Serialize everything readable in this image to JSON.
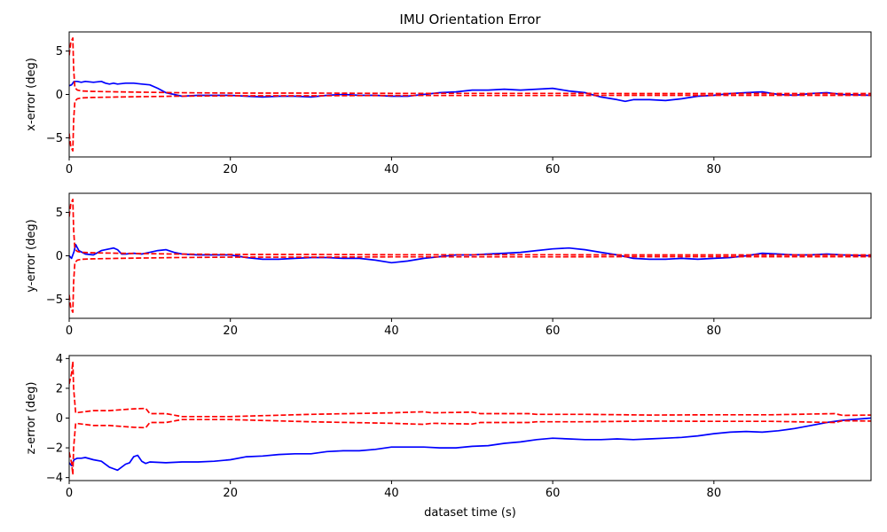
{
  "figure": {
    "title": "IMU Orientation Error",
    "xlabel": "dataset time (s)"
  },
  "chart_data": [
    {
      "type": "line",
      "title": "IMU Orientation Error",
      "xlabel": "",
      "ylabel": "x-error (deg)",
      "xlim": [
        0,
        99.5
      ],
      "ylim": [
        -7.2,
        7.2
      ],
      "xticks": [
        0,
        20,
        40,
        60,
        80
      ],
      "yticks": [
        -5,
        0,
        5
      ],
      "grid": false,
      "series": [
        {
          "name": "",
          "color": "#0000ff",
          "style": "solid",
          "x": [
            0,
            0.3,
            0.6,
            1,
            1.5,
            2,
            3,
            4,
            4.5,
            5,
            5.5,
            6,
            7,
            8,
            9,
            10,
            11,
            12,
            13,
            14,
            16,
            18,
            20,
            22,
            24,
            26,
            28,
            30,
            32,
            34,
            36,
            38,
            40,
            42,
            44,
            46,
            48,
            50,
            52,
            54,
            56,
            58,
            60,
            62,
            64,
            66,
            68,
            69,
            70,
            72,
            74,
            76,
            78,
            80,
            82,
            84,
            86,
            88,
            90,
            92,
            94,
            96,
            99.5
          ],
          "y": [
            1.0,
            1.1,
            1.5,
            1.5,
            1.4,
            1.5,
            1.4,
            1.5,
            1.3,
            1.2,
            1.3,
            1.2,
            1.3,
            1.3,
            1.2,
            1.1,
            0.7,
            0.2,
            0.0,
            -0.2,
            -0.1,
            -0.1,
            -0.1,
            -0.2,
            -0.3,
            -0.2,
            -0.2,
            -0.3,
            -0.1,
            0.0,
            -0.1,
            -0.1,
            -0.2,
            -0.2,
            0.0,
            0.2,
            0.3,
            0.5,
            0.5,
            0.6,
            0.5,
            0.6,
            0.7,
            0.4,
            0.2,
            -0.3,
            -0.6,
            -0.8,
            -0.6,
            -0.6,
            -0.7,
            -0.5,
            -0.2,
            -0.1,
            0.1,
            0.2,
            0.3,
            0.0,
            -0.1,
            0.1,
            0.2,
            0.0,
            -0.1
          ]
        },
        {
          "name": "",
          "color": "#ff0000",
          "style": "dashed",
          "x": [
            0,
            0.2,
            0.45,
            0.55,
            0.7,
            1.0,
            1.5,
            3,
            6,
            10,
            13,
            16,
            20,
            30,
            40,
            50,
            60,
            70,
            80,
            90,
            99.5
          ],
          "y": [
            4.5,
            6.0,
            6.5,
            3.0,
            0.8,
            0.5,
            0.4,
            0.35,
            0.3,
            0.25,
            0.2,
            0.18,
            0.15,
            0.15,
            0.12,
            0.12,
            0.12,
            0.1,
            0.1,
            0.1,
            0.1
          ]
        },
        {
          "name": "",
          "color": "#ff0000",
          "style": "dashed",
          "x": [
            0,
            0.2,
            0.45,
            0.55,
            0.7,
            1.0,
            1.5,
            3,
            6,
            10,
            13,
            16,
            20,
            30,
            40,
            50,
            60,
            70,
            80,
            90,
            99.5
          ],
          "y": [
            -4.5,
            -6.0,
            -6.5,
            -3.0,
            -0.8,
            -0.5,
            -0.4,
            -0.35,
            -0.3,
            -0.25,
            -0.2,
            -0.18,
            -0.15,
            -0.15,
            -0.12,
            -0.12,
            -0.12,
            -0.1,
            -0.1,
            -0.1,
            -0.1
          ]
        }
      ]
    },
    {
      "type": "line",
      "title": "",
      "xlabel": "",
      "ylabel": "y-error (deg)",
      "xlim": [
        0,
        99.5
      ],
      "ylim": [
        -7.2,
        7.2
      ],
      "xticks": [
        0,
        20,
        40,
        60,
        80
      ],
      "yticks": [
        -5,
        0,
        5
      ],
      "grid": false,
      "series": [
        {
          "name": "",
          "color": "#0000ff",
          "style": "solid",
          "x": [
            0,
            0.3,
            0.6,
            0.8,
            1.2,
            2,
            3,
            4,
            5,
            5.5,
            6,
            6.5,
            7,
            8,
            9,
            10,
            11,
            12,
            13,
            14,
            16,
            18,
            20,
            22,
            24,
            26,
            28,
            30,
            32,
            34,
            36,
            38,
            40,
            42,
            44,
            46,
            48,
            50,
            52,
            54,
            56,
            58,
            60,
            62,
            64,
            66,
            68,
            70,
            72,
            74,
            76,
            78,
            80,
            82,
            84,
            86,
            88,
            90,
            92,
            94,
            96,
            99.5
          ],
          "y": [
            0.0,
            -0.3,
            0.5,
            1.3,
            0.6,
            0.2,
            0.1,
            0.6,
            0.8,
            0.9,
            0.7,
            0.2,
            0.2,
            0.3,
            0.2,
            0.4,
            0.6,
            0.7,
            0.4,
            0.2,
            0.1,
            0.1,
            0.1,
            -0.2,
            -0.4,
            -0.4,
            -0.3,
            -0.2,
            -0.2,
            -0.3,
            -0.3,
            -0.5,
            -0.8,
            -0.6,
            -0.3,
            -0.1,
            0.1,
            0.1,
            0.2,
            0.3,
            0.4,
            0.6,
            0.8,
            0.9,
            0.7,
            0.4,
            0.1,
            -0.3,
            -0.4,
            -0.4,
            -0.3,
            -0.4,
            -0.3,
            -0.2,
            0.0,
            0.3,
            0.2,
            0.1,
            0.1,
            0.2,
            0.1,
            0.0
          ]
        },
        {
          "name": "",
          "color": "#ff0000",
          "style": "dashed",
          "x": [
            0,
            0.2,
            0.45,
            0.55,
            0.7,
            1.0,
            1.5,
            3,
            6,
            10,
            13,
            16,
            20,
            30,
            40,
            50,
            60,
            70,
            80,
            90,
            99.5
          ],
          "y": [
            4.5,
            6.0,
            6.5,
            3.0,
            0.8,
            0.5,
            0.4,
            0.35,
            0.3,
            0.25,
            0.2,
            0.18,
            0.15,
            0.15,
            0.12,
            0.12,
            0.12,
            0.1,
            0.1,
            0.1,
            0.1
          ]
        },
        {
          "name": "",
          "color": "#ff0000",
          "style": "dashed",
          "x": [
            0,
            0.2,
            0.45,
            0.55,
            0.7,
            1.0,
            1.5,
            3,
            6,
            10,
            13,
            16,
            20,
            30,
            40,
            50,
            60,
            70,
            80,
            90,
            99.5
          ],
          "y": [
            -4.5,
            -6.0,
            -6.5,
            -3.0,
            -0.8,
            -0.5,
            -0.4,
            -0.35,
            -0.3,
            -0.25,
            -0.2,
            -0.18,
            -0.15,
            -0.15,
            -0.12,
            -0.12,
            -0.12,
            -0.1,
            -0.1,
            -0.1,
            -0.1
          ]
        }
      ]
    },
    {
      "type": "line",
      "title": "",
      "xlabel": "dataset time (s)",
      "ylabel": "z-error (deg)",
      "xlim": [
        0,
        99.5
      ],
      "ylim": [
        -4.2,
        4.2
      ],
      "xticks": [
        0,
        20,
        40,
        60,
        80
      ],
      "yticks": [
        -4,
        -2,
        0,
        2,
        4
      ],
      "grid": false,
      "series": [
        {
          "name": "",
          "color": "#0000ff",
          "style": "solid",
          "x": [
            0,
            0.3,
            0.6,
            1,
            1.5,
            2,
            3,
            4,
            5,
            6,
            7,
            7.5,
            8,
            8.5,
            9,
            9.5,
            10,
            12,
            14,
            16,
            18,
            20,
            22,
            24,
            26,
            28,
            30,
            32,
            34,
            36,
            38,
            40,
            42,
            44,
            46,
            48,
            50,
            52,
            54,
            56,
            58,
            60,
            62,
            64,
            66,
            68,
            70,
            72,
            74,
            76,
            78,
            80,
            82,
            84,
            86,
            88,
            90,
            92,
            94,
            96,
            99.5
          ],
          "y": [
            -3.0,
            -3.2,
            -2.8,
            -2.7,
            -2.7,
            -2.65,
            -2.8,
            -2.9,
            -3.3,
            -3.5,
            -3.1,
            -3.0,
            -2.6,
            -2.5,
            -2.9,
            -3.05,
            -2.95,
            -3.0,
            -2.95,
            -2.95,
            -2.9,
            -2.8,
            -2.6,
            -2.55,
            -2.45,
            -2.4,
            -2.4,
            -2.25,
            -2.2,
            -2.2,
            -2.1,
            -1.95,
            -1.95,
            -1.95,
            -2.0,
            -2.0,
            -1.9,
            -1.85,
            -1.7,
            -1.6,
            -1.45,
            -1.35,
            -1.4,
            -1.45,
            -1.45,
            -1.4,
            -1.45,
            -1.4,
            -1.35,
            -1.3,
            -1.2,
            -1.05,
            -0.95,
            -0.9,
            -0.95,
            -0.85,
            -0.7,
            -0.5,
            -0.3,
            -0.15,
            0.0
          ]
        },
        {
          "name": "",
          "color": "#ff0000",
          "style": "dashed",
          "x": [
            0,
            0.3,
            0.45,
            0.55,
            0.8,
            1.5,
            3,
            5,
            8,
            9.5,
            10,
            12,
            14,
            20,
            30,
            40,
            44,
            45,
            50,
            51,
            57,
            58,
            64,
            72,
            80,
            87,
            95,
            96,
            99.5
          ],
          "y": [
            2.3,
            3.0,
            3.8,
            2.0,
            0.35,
            0.4,
            0.5,
            0.5,
            0.62,
            0.65,
            0.3,
            0.3,
            0.1,
            0.1,
            0.25,
            0.35,
            0.42,
            0.35,
            0.4,
            0.3,
            0.3,
            0.25,
            0.25,
            0.2,
            0.22,
            0.22,
            0.3,
            0.18,
            0.2
          ]
        },
        {
          "name": "",
          "color": "#ff0000",
          "style": "dashed",
          "x": [
            0,
            0.3,
            0.45,
            0.55,
            0.8,
            1.5,
            3,
            5,
            8,
            9.5,
            10,
            12,
            14,
            20,
            30,
            40,
            44,
            45,
            50,
            51,
            57,
            58,
            64,
            72,
            80,
            87,
            95,
            96,
            99.5
          ],
          "y": [
            -2.3,
            -3.0,
            -3.8,
            -2.0,
            -0.35,
            -0.4,
            -0.5,
            -0.5,
            -0.62,
            -0.65,
            -0.3,
            -0.3,
            -0.1,
            -0.1,
            -0.25,
            -0.35,
            -0.42,
            -0.35,
            -0.4,
            -0.3,
            -0.3,
            -0.25,
            -0.25,
            -0.2,
            -0.22,
            -0.22,
            -0.3,
            -0.18,
            -0.2
          ]
        }
      ]
    }
  ]
}
